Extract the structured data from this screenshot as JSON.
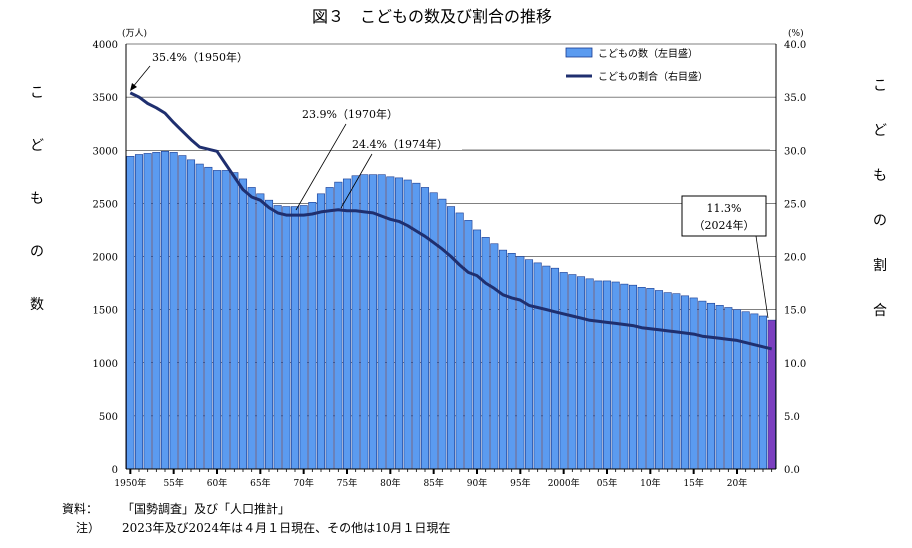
{
  "chart_data": {
    "type": "bar",
    "title": "図３　こどもの数及び割合の推移",
    "y_left_unit": "(万人)",
    "y_right_unit": "(%)",
    "y_left_label_chars": [
      "こ",
      "ど",
      "も",
      "の",
      "数"
    ],
    "y_right_label_chars": [
      "こ",
      "ど",
      "も",
      "の",
      "割",
      "合"
    ],
    "ylim_left": [
      0,
      4000
    ],
    "ylim_right": [
      0,
      40
    ],
    "y_left_ticks": [
      "0",
      "500",
      "1000",
      "1500",
      "2000",
      "2500",
      "3000",
      "3500",
      "4000"
    ],
    "y_right_ticks": [
      "0.0",
      "5.0",
      "10.0",
      "15.0",
      "20.0",
      "25.0",
      "30.0",
      "35.0",
      "40.0"
    ],
    "x_tick_labels": [
      {
        "year": 1950,
        "label": "1950年"
      },
      {
        "year": 1955,
        "label": "55年"
      },
      {
        "year": 1960,
        "label": "60年"
      },
      {
        "year": 1965,
        "label": "65年"
      },
      {
        "year": 1970,
        "label": "70年"
      },
      {
        "year": 1975,
        "label": "75年"
      },
      {
        "year": 1980,
        "label": "80年"
      },
      {
        "year": 1985,
        "label": "85年"
      },
      {
        "year": 1990,
        "label": "90年"
      },
      {
        "year": 1995,
        "label": "95年"
      },
      {
        "year": 2000,
        "label": "2000年"
      },
      {
        "year": 2005,
        "label": "05年"
      },
      {
        "year": 2010,
        "label": "10年"
      },
      {
        "year": 2015,
        "label": "15年"
      },
      {
        "year": 2020,
        "label": "20年"
      }
    ],
    "x": [
      1950,
      1951,
      1952,
      1953,
      1954,
      1955,
      1956,
      1957,
      1958,
      1959,
      1960,
      1961,
      1962,
      1963,
      1964,
      1965,
      1966,
      1967,
      1968,
      1969,
      1970,
      1971,
      1972,
      1973,
      1974,
      1975,
      1976,
      1977,
      1978,
      1979,
      1980,
      1981,
      1982,
      1983,
      1984,
      1985,
      1986,
      1987,
      1988,
      1989,
      1990,
      1991,
      1992,
      1993,
      1994,
      1995,
      1996,
      1997,
      1998,
      1999,
      2000,
      2001,
      2002,
      2003,
      2004,
      2005,
      2006,
      2007,
      2008,
      2009,
      2010,
      2011,
      2012,
      2013,
      2014,
      2015,
      2016,
      2017,
      2018,
      2019,
      2020,
      2021,
      2022,
      2023,
      2024
    ],
    "series": [
      {
        "name": "こどもの数（左目盛）",
        "type": "bar",
        "axis": "left",
        "color": "#5b9bf0",
        "values": [
          2943,
          2960,
          2970,
          2980,
          2990,
          2980,
          2950,
          2910,
          2870,
          2840,
          2810,
          2810,
          2790,
          2730,
          2650,
          2590,
          2530,
          2480,
          2470,
          2470,
          2480,
          2510,
          2590,
          2650,
          2700,
          2730,
          2760,
          2770,
          2770,
          2770,
          2750,
          2740,
          2720,
          2690,
          2650,
          2600,
          2540,
          2470,
          2410,
          2340,
          2250,
          2180,
          2120,
          2060,
          2030,
          2000,
          1970,
          1940,
          1910,
          1890,
          1850,
          1830,
          1810,
          1790,
          1770,
          1770,
          1760,
          1740,
          1730,
          1710,
          1700,
          1680,
          1660,
          1650,
          1630,
          1610,
          1580,
          1560,
          1540,
          1520,
          1500,
          1480,
          1460,
          1440,
          1401
        ]
      },
      {
        "name": "こどもの割合（右目盛）",
        "type": "line",
        "axis": "right",
        "color": "#1f2f6f",
        "values": [
          35.4,
          35.0,
          34.4,
          34.0,
          33.5,
          32.6,
          31.8,
          31.0,
          30.3,
          30.1,
          29.9,
          28.7,
          27.5,
          26.3,
          25.6,
          25.3,
          24.6,
          24.1,
          23.9,
          23.9,
          23.9,
          24.0,
          24.2,
          24.3,
          24.4,
          24.3,
          24.3,
          24.2,
          24.1,
          23.8,
          23.5,
          23.3,
          22.9,
          22.4,
          21.9,
          21.3,
          20.7,
          20.0,
          19.2,
          18.5,
          18.2,
          17.5,
          17.0,
          16.4,
          16.1,
          15.9,
          15.4,
          15.2,
          15.0,
          14.8,
          14.6,
          14.4,
          14.2,
          14.0,
          13.9,
          13.8,
          13.7,
          13.6,
          13.5,
          13.3,
          13.2,
          13.1,
          13.0,
          12.9,
          12.8,
          12.7,
          12.5,
          12.4,
          12.3,
          12.2,
          12.1,
          11.9,
          11.7,
          11.5,
          11.3
        ]
      }
    ],
    "annotations": [
      {
        "text": "35.4%（1950年）",
        "year": 1950,
        "value": 35.4
      },
      {
        "text": "23.9%（1970年）",
        "year": 1970,
        "value": 23.9
      },
      {
        "text": "24.4%（1974年）",
        "year": 1974,
        "value": 24.4
      },
      {
        "text_line1": "11.3%",
        "text_line2": "（2024年）",
        "year": 2024,
        "value": 11.3
      }
    ],
    "legend_position": "top-right",
    "gridlines": "horizontal",
    "highlight_bar_year": 2024,
    "highlight_bar_color": "#7b3fbf"
  },
  "notes": {
    "source_label": "資料：",
    "source_text": "「国勢調査」及び「人口推計」",
    "note_label": "注）",
    "note_text": "2023年及び2024年は４月１日現在、その他は10月１日現在"
  }
}
